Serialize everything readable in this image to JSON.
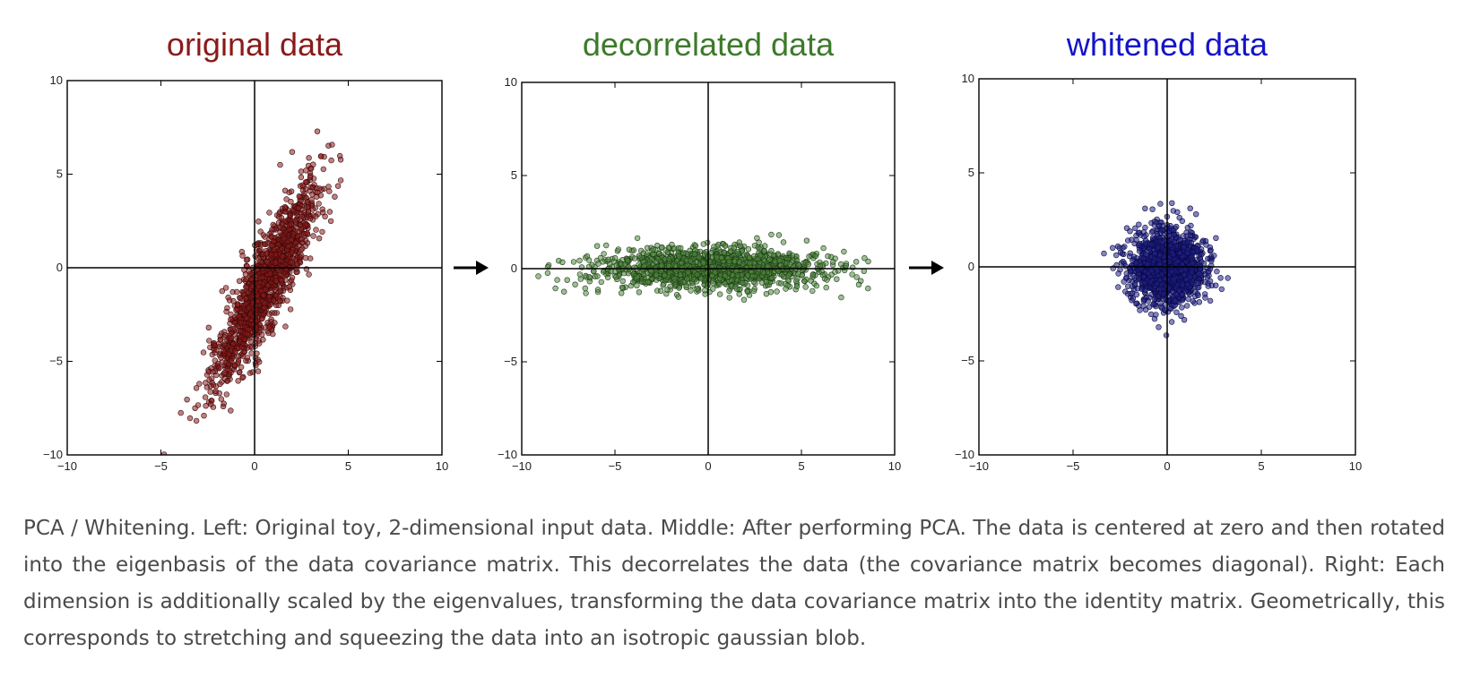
{
  "chart_data": [
    {
      "type": "scatter",
      "title": "original data",
      "title_color": "#8b1a1a",
      "point_fill": "#8b1a1a",
      "point_stroke": "#3a0a0a",
      "xlim": [
        -10,
        10
      ],
      "ylim": [
        -10,
        10
      ],
      "xticks": [
        -10,
        -5,
        0,
        5,
        10
      ],
      "yticks": [
        -10,
        -5,
        0,
        5,
        10
      ],
      "xtick_labels": [
        "−10",
        "−5",
        "0",
        "5",
        "10"
      ],
      "ytick_labels": [
        "−10",
        "−5",
        "0",
        "5",
        "10"
      ],
      "grid": false,
      "reference_lines": [
        0,
        0
      ],
      "distribution": {
        "mean": [
          0.5,
          -1.0
        ],
        "std_major": 3.0,
        "std_minor": 0.6,
        "angle_deg": 64,
        "n": 1400,
        "seed": 11
      }
    },
    {
      "type": "scatter",
      "title": "decorrelated data",
      "title_color": "#3d7a2a",
      "point_fill": "#4f8a3c",
      "point_stroke": "#1f3a18",
      "xlim": [
        -10,
        10
      ],
      "ylim": [
        -10,
        10
      ],
      "xticks": [
        -10,
        -5,
        0,
        5,
        10
      ],
      "yticks": [
        -10,
        -5,
        0,
        5,
        10
      ],
      "xtick_labels": [
        "−10",
        "−5",
        "0",
        "5",
        "10"
      ],
      "ytick_labels": [
        "−10",
        "−5",
        "0",
        "5",
        "10"
      ],
      "grid": false,
      "reference_lines": [
        0,
        0
      ],
      "distribution": {
        "mean": [
          0,
          0
        ],
        "std_major": 3.0,
        "std_minor": 0.55,
        "angle_deg": 0,
        "n": 1400,
        "seed": 23
      }
    },
    {
      "type": "scatter",
      "title": "whitened data",
      "title_color": "#1414c8",
      "point_fill": "#1f1f8a",
      "point_stroke": "#0a0a40",
      "xlim": [
        -10,
        10
      ],
      "ylim": [
        -10,
        10
      ],
      "xticks": [
        -10,
        -5,
        0,
        5,
        10
      ],
      "yticks": [
        -10,
        -5,
        0,
        5,
        10
      ],
      "xtick_labels": [
        "−10",
        "−5",
        "0",
        "5",
        "10"
      ],
      "ytick_labels": [
        "−10",
        "−5",
        "0",
        "5",
        "10"
      ],
      "grid": false,
      "reference_lines": [
        0,
        0
      ],
      "distribution": {
        "mean": [
          0,
          0
        ],
        "std_major": 1.0,
        "std_minor": 1.0,
        "angle_deg": 0,
        "n": 1400,
        "seed": 37
      }
    }
  ],
  "arrows": [
    {
      "from": "original data",
      "to": "decorrelated data",
      "icon": "arrow-right-icon"
    },
    {
      "from": "decorrelated data",
      "to": "whitened data",
      "icon": "arrow-right-icon"
    }
  ],
  "caption": "PCA / Whitening. Left: Original toy, 2-dimensional input data. Middle: After performing PCA. The data is centered at zero and then rotated into the eigenbasis of the data covariance matrix. This decorrelates the data (the covariance matrix becomes diagonal). Right: Each dimension is additionally scaled by the eigenvalues, transforming the data covariance matrix into the identity matrix. Geometrically, this corresponds to stretching and squeezing the data into an isotropic gaussian blob."
}
